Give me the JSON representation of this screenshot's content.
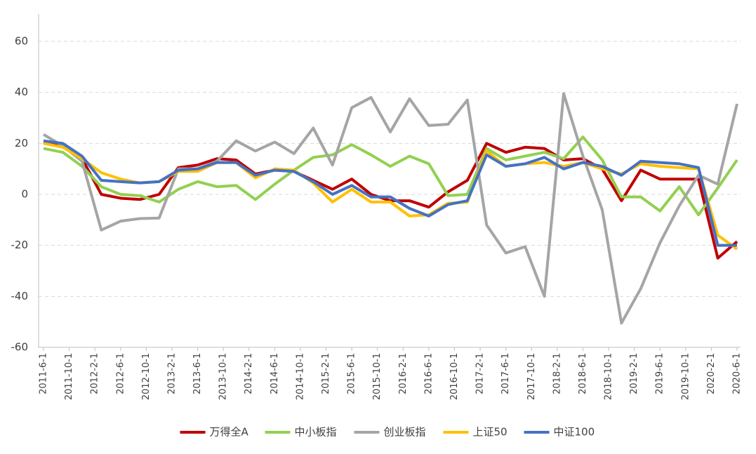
{
  "chart_data": {
    "type": "line",
    "x": [
      "2011-6-1",
      "2011-9-1",
      "2011-12-1",
      "2012-3-1",
      "2012-6-1",
      "2012-9-1",
      "2012-12-1",
      "2013-3-1",
      "2013-6-1",
      "2013-9-1",
      "2013-12-1",
      "2014-3-1",
      "2014-6-1",
      "2014-9-1",
      "2014-12-1",
      "2015-3-1",
      "2015-6-1",
      "2015-9-1",
      "2015-12-1",
      "2016-3-1",
      "2016-6-1",
      "2016-9-1",
      "2016-12-1",
      "2017-3-1",
      "2017-6-1",
      "2017-9-1",
      "2017-12-1",
      "2018-3-1",
      "2018-6-1",
      "2018-9-1",
      "2018-12-1",
      "2019-3-1",
      "2019-6-1",
      "2019-9-1",
      "2019-12-1",
      "2020-3-1",
      "2020-6-1"
    ],
    "xlim": [
      "2011-6-1",
      "2020-6-1"
    ],
    "xticks": [
      "2011-6-1",
      "2011-10-1",
      "2012-2-1",
      "2012-6-1",
      "2012-10-1",
      "2013-2-1",
      "2013-6-1",
      "2013-10-1",
      "2014-2-1",
      "2014-6-1",
      "2014-10-1",
      "2015-2-1",
      "2015-6-1",
      "2015-10-1",
      "2016-2-1",
      "2016-6-1",
      "2016-10-1",
      "2017-2-1",
      "2017-6-1",
      "2017-10-1",
      "2018-2-1",
      "2018-6-1",
      "2018-10-1",
      "2019-2-1",
      "2019-6-1",
      "2019-10-1",
      "2020-2-1",
      "2020-6-1"
    ],
    "ylim": [
      -60,
      60
    ],
    "yticks": [
      -60,
      -40,
      -20,
      0,
      20,
      40,
      60
    ],
    "grid": true,
    "legend": "bottom",
    "series": [
      {
        "name": "万得全A",
        "color": "#c00000",
        "values": [
          20.5,
          19,
          14,
          0,
          -1.5,
          -2,
          0,
          10.5,
          11.5,
          14,
          13.5,
          8,
          9.5,
          9,
          5.5,
          2,
          6,
          0,
          -2.5,
          -2.5,
          -5,
          1,
          5.5,
          20,
          16.5,
          18.5,
          18,
          13.5,
          14,
          10,
          -2.5,
          9.5,
          6,
          6,
          6,
          -25,
          -18.5
        ]
      },
      {
        "name": "中小板指",
        "color": "#92d050",
        "values": [
          18,
          16.5,
          11,
          3,
          0,
          -0.5,
          -3,
          2,
          5,
          3,
          3.5,
          -2,
          4,
          9.5,
          14.5,
          15.5,
          19.5,
          15.5,
          11,
          15,
          12,
          -0.5,
          0,
          18,
          13.5,
          15,
          16.5,
          14,
          22.5,
          13.5,
          -1,
          -1,
          -6.5,
          3,
          -8,
          2.5,
          13.5
        ]
      },
      {
        "name": "创业板指",
        "color": "#a5a5a5",
        "values": [
          23.5,
          19,
          13,
          -14,
          -10.5,
          -9.5,
          -9.3,
          10,
          10,
          13,
          21,
          17,
          20.5,
          16,
          26,
          11.5,
          34,
          38,
          24.5,
          37.5,
          27,
          27.5,
          37,
          -12,
          -23,
          -20.5,
          -40,
          39.5,
          15,
          -6,
          -50.5,
          -37,
          -19,
          -4.5,
          7.5,
          4,
          35.5
        ]
      },
      {
        "name": "上证50",
        "color": "#ffc000",
        "values": [
          20,
          18.5,
          14,
          8.5,
          6,
          4.5,
          5,
          9,
          9,
          12.5,
          12.5,
          6.5,
          10,
          9.5,
          4.5,
          -3,
          2,
          -3,
          -3,
          -8.5,
          -8,
          -3.5,
          -3,
          17,
          11,
          12,
          12.5,
          11,
          12.5,
          10,
          8,
          12,
          11,
          10.5,
          10,
          -16,
          -21.5
        ]
      },
      {
        "name": "中证100",
        "color": "#4472c4",
        "values": [
          21,
          20,
          15,
          5.5,
          5,
          4.5,
          5,
          9.5,
          10,
          12.5,
          12.5,
          7.5,
          9.5,
          9,
          5,
          0,
          3.5,
          -1,
          -1,
          -5.5,
          -8.5,
          -4,
          -2.5,
          15.5,
          11,
          12,
          14.5,
          10,
          12.5,
          11,
          7.5,
          13,
          12.5,
          12,
          10.5,
          -20,
          -20
        ]
      }
    ]
  }
}
